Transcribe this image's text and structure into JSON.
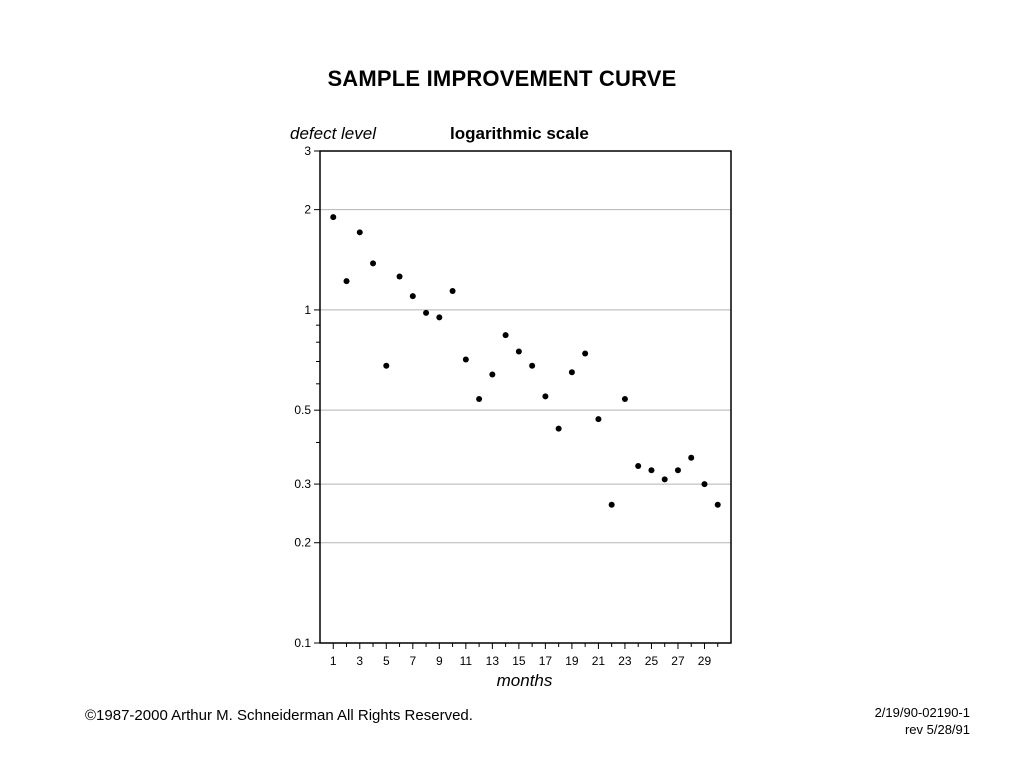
{
  "chart_data": {
    "type": "scatter",
    "title": "SAMPLE IMPROVEMENT CURVE",
    "ylabel": "defect level",
    "scale_note": "logarithmic scale",
    "xlabel": "months",
    "y_scale": "log",
    "ylim": [
      0.1,
      3
    ],
    "xlim": [
      0,
      31
    ],
    "y_ticks": [
      0.1,
      0.2,
      0.3,
      0.5,
      1,
      2,
      3
    ],
    "y_tick_labels": [
      "0.1",
      "0.2",
      "0.3",
      "0.5",
      "1",
      "2",
      "3"
    ],
    "y_minor_ticks": [
      0.4,
      0.6,
      0.7,
      0.8,
      0.9
    ],
    "gridlines_y": [
      0.2,
      0.3,
      0.5,
      1,
      2
    ],
    "x_ticks": [
      1,
      3,
      5,
      7,
      9,
      11,
      13,
      15,
      17,
      19,
      21,
      23,
      25,
      27,
      29
    ],
    "x_tick_labels": [
      "1",
      "3",
      "5",
      "7",
      "9",
      "11",
      "13",
      "15",
      "17",
      "19",
      "21",
      "23",
      "25",
      "27",
      "29"
    ],
    "grid": "horizontal",
    "points": {
      "x": [
        1,
        2,
        3,
        4,
        5,
        6,
        7,
        8,
        9,
        10,
        11,
        12,
        13,
        14,
        15,
        16,
        17,
        18,
        19,
        20,
        21,
        22,
        23,
        24,
        25,
        26,
        27,
        28,
        29,
        30
      ],
      "y": [
        1.9,
        1.22,
        1.71,
        1.38,
        0.68,
        1.26,
        1.1,
        0.98,
        0.95,
        1.14,
        0.71,
        0.54,
        0.64,
        0.84,
        0.75,
        0.68,
        0.55,
        0.44,
        0.65,
        0.74,
        0.47,
        0.26,
        0.54,
        0.34,
        0.33,
        0.31,
        0.33,
        0.36,
        0.3,
        0.26
      ]
    }
  },
  "footer": {
    "copyright": "©1987-2000 Arthur M. Schneiderman  All Rights Reserved.",
    "ref_line1": "2/19/90-02190-1",
    "ref_line2": "rev 5/28/91"
  }
}
